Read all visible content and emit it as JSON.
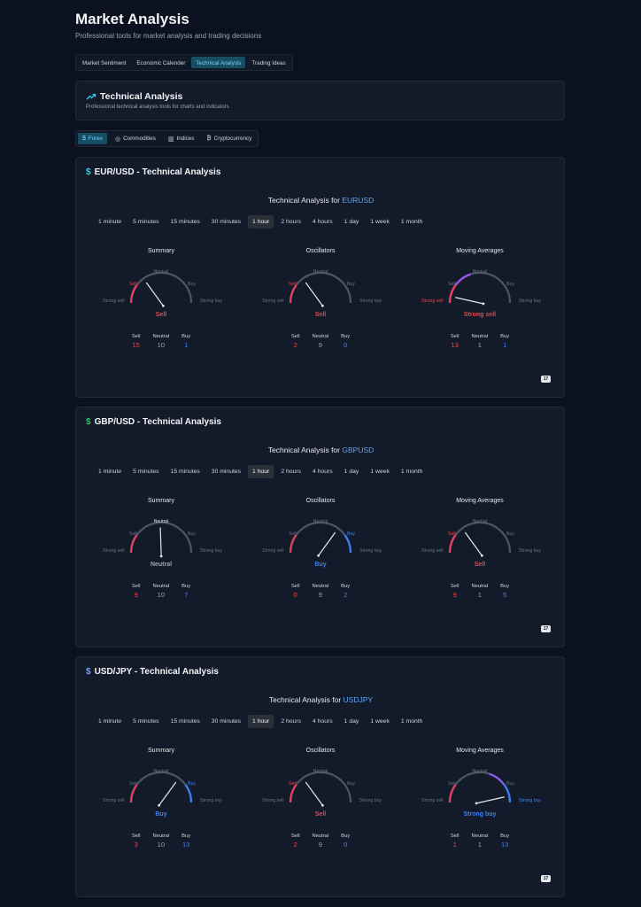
{
  "page": {
    "title": "Market Analysis",
    "subtitle": "Professional tools for market analysis and trading decisions"
  },
  "main_tabs": [
    {
      "label": "Market Sentiment",
      "active": false
    },
    {
      "label": "Economic Calender",
      "active": false
    },
    {
      "label": "Technical Analysis",
      "active": true
    },
    {
      "label": "Trading Ideas",
      "active": false
    }
  ],
  "ta_header": {
    "title": "Technical Analysis",
    "subtitle": "Professional technical analysis tools for charts and indicators"
  },
  "asset_tabs": [
    {
      "label": "Forex",
      "icon": "dollar-icon",
      "glyph": "$",
      "active": true
    },
    {
      "label": "Commodities",
      "icon": "coins-icon",
      "glyph": "◎",
      "active": false
    },
    {
      "label": "Indices",
      "icon": "bar-chart-icon",
      "glyph": "▥",
      "active": false
    },
    {
      "label": "Cryptocurrency",
      "icon": "bitcoin-icon",
      "glyph": "₿",
      "active": false
    }
  ],
  "colors": {
    "sell": "#ef4444",
    "buy": "#3b82f6",
    "neutral": "#9ca3af",
    "accent": "#22d3ee"
  },
  "intervals": [
    "1 minute",
    "5 minutes",
    "15 minutes",
    "30 minutes",
    "1 hour",
    "2 hours",
    "4 hours",
    "1 day",
    "1 week",
    "1 month"
  ],
  "active_interval": "1 hour",
  "gauge_labels": {
    "strong_sell": "Strong sell",
    "sell": "Sell",
    "neutral": "Neutral",
    "buy": "Buy",
    "strong_buy": "Strong buy",
    "count_sell": "Sell",
    "count_neutral": "Neutral",
    "count_buy": "Buy"
  },
  "analysis_prefix": "Technical Analysis for ",
  "cards": [
    {
      "title": "EUR/USD - Technical Analysis",
      "dollar_color": "#22d3ee",
      "symbol": "EURUSD",
      "gauges": [
        {
          "name": "Summary",
          "rating": "Sell",
          "level": 1,
          "sell": "15",
          "neutral": "10",
          "buy": "1"
        },
        {
          "name": "Oscillators",
          "rating": "Sell",
          "level": 1,
          "sell": "2",
          "neutral": "9",
          "buy": "0"
        },
        {
          "name": "Moving Averages",
          "rating": "Strong sell",
          "level": 0,
          "sell": "13",
          "neutral": "1",
          "buy": "1"
        }
      ]
    },
    {
      "title": "GBP/USD - Technical Analysis",
      "dollar_color": "#22c55e",
      "symbol": "GBPUSD",
      "gauges": [
        {
          "name": "Summary",
          "rating": "Neutral",
          "level": 2,
          "sell": "9",
          "neutral": "10",
          "buy": "7"
        },
        {
          "name": "Oscillators",
          "rating": "Buy",
          "level": 3,
          "sell": "0",
          "neutral": "9",
          "buy": "2"
        },
        {
          "name": "Moving Averages",
          "rating": "Sell",
          "level": 1,
          "sell": "9",
          "neutral": "1",
          "buy": "5"
        }
      ]
    },
    {
      "title": "USD/JPY - Technical Analysis",
      "dollar_color": "#60a5fa",
      "symbol": "USDJPY",
      "gauges": [
        {
          "name": "Summary",
          "rating": "Buy",
          "level": 3,
          "sell": "3",
          "neutral": "10",
          "buy": "13"
        },
        {
          "name": "Oscillators",
          "rating": "Sell",
          "level": 1,
          "sell": "2",
          "neutral": "9",
          "buy": "0"
        },
        {
          "name": "Moving Averages",
          "rating": "Strong buy",
          "level": 4,
          "sell": "1",
          "neutral": "1",
          "buy": "13"
        }
      ]
    }
  ]
}
